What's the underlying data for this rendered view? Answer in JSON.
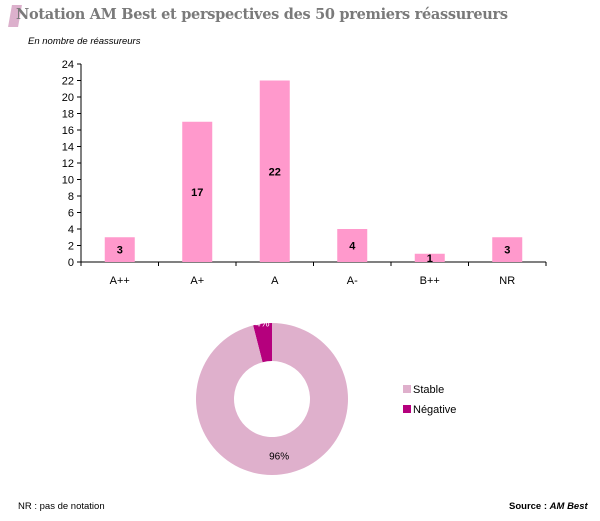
{
  "title": "Notation AM Best et perspectives des 50 premiers réassureurs",
  "unit_note": "En nombre de réassureurs",
  "footer": {
    "note": "NR : pas de notation",
    "source_label": "Source :",
    "source": "AM Best"
  },
  "chart_data": [
    {
      "type": "bar",
      "categories": [
        "A++",
        "A+",
        "A",
        "A-",
        "B++",
        "NR"
      ],
      "values": [
        3,
        17,
        22,
        4,
        1,
        3
      ],
      "ylim": [
        0,
        24
      ],
      "yticks": [
        0,
        2,
        4,
        6,
        8,
        10,
        12,
        14,
        16,
        18,
        20,
        22,
        24
      ],
      "data_labels": [
        "3",
        "17",
        "22",
        "4",
        "1",
        "3"
      ],
      "grid": false,
      "color": "#ff99cc"
    },
    {
      "type": "pie",
      "donut": true,
      "labels": [
        "Stable",
        "Négative"
      ],
      "values": [
        96,
        4
      ],
      "data_labels": [
        "96%",
        "4%"
      ],
      "colors": [
        "#dfb0cc",
        "#b5007d"
      ],
      "legend": "right"
    }
  ]
}
